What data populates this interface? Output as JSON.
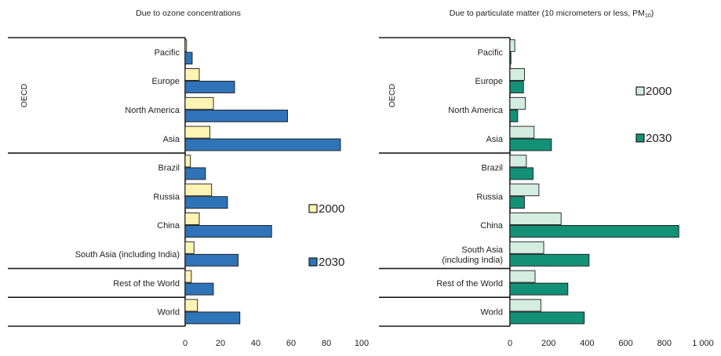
{
  "chart_data": [
    {
      "type": "bar",
      "title": "Due to ozone concentrations",
      "categories": [
        "Pacific",
        "Europe",
        "North America",
        "Asia",
        "Brazil",
        "Russia",
        "China",
        "South Asia (including India)",
        "Rest of the World",
        "World"
      ],
      "category_lines": [
        [
          "Pacific"
        ],
        [
          "Europe"
        ],
        [
          "North America"
        ],
        [
          "Asia"
        ],
        [
          "Brazil"
        ],
        [
          "Russia"
        ],
        [
          "China"
        ],
        [
          "South Asia (including India)"
        ],
        [
          "Rest of the World"
        ],
        [
          "World"
        ]
      ],
      "group_label": "OECD",
      "series": [
        {
          "name": "2000",
          "values": [
            0.8,
            8,
            16,
            14,
            3,
            15,
            8,
            5,
            3.5,
            7
          ]
        },
        {
          "name": "2030",
          "values": [
            4,
            28,
            58,
            88,
            11.5,
            24,
            49,
            30,
            16,
            31
          ]
        }
      ],
      "xlim": [
        0,
        100
      ],
      "xticks": [
        0,
        20,
        40,
        60,
        80,
        100
      ],
      "xtick_labels": [
        "0",
        "20",
        "40",
        "60",
        "80",
        "100"
      ],
      "colors": {
        "2000": "#fdf3b3",
        "2030": "#2f73b8",
        "outline": "#1a1a1a"
      },
      "legend": {
        "placement": "right",
        "items": [
          "2000",
          "2030"
        ]
      }
    },
    {
      "type": "bar",
      "title": "Due to particulate matter (10 micrometers or less, PM",
      "title_subscript": "10",
      "title_suffix": ")",
      "categories": [
        "Pacific",
        "Europe",
        "North America",
        "Asia",
        "Brazil",
        "Russia",
        "China",
        "South Asia (including India)",
        "Rest of the World",
        "World"
      ],
      "category_lines": [
        [
          "Pacific"
        ],
        [
          "Europe"
        ],
        [
          "North America"
        ],
        [
          "Asia"
        ],
        [
          "Brazil"
        ],
        [
          "Russia"
        ],
        [
          "China"
        ],
        [
          "South Asia",
          "(including India)"
        ],
        [
          "Rest of the World"
        ],
        [
          "World"
        ]
      ],
      "group_label": "OECD",
      "series": [
        {
          "name": "2000",
          "values": [
            25,
            75,
            80,
            125,
            85,
            150,
            265,
            175,
            130,
            160
          ]
        },
        {
          "name": "2030",
          "values": [
            5,
            70,
            40,
            215,
            120,
            75,
            875,
            410,
            300,
            385
          ]
        }
      ],
      "xlim": [
        0,
        1000
      ],
      "xticks": [
        0,
        200,
        400,
        600,
        800,
        1000
      ],
      "xtick_labels": [
        "0",
        "200",
        "400",
        "600",
        "800",
        "1 000"
      ],
      "colors": {
        "2000": "#d4ede1",
        "2030": "#139177",
        "outline": "#1a1a1a"
      },
      "legend": {
        "placement": "right",
        "items": [
          "2000",
          "2030"
        ]
      }
    }
  ]
}
